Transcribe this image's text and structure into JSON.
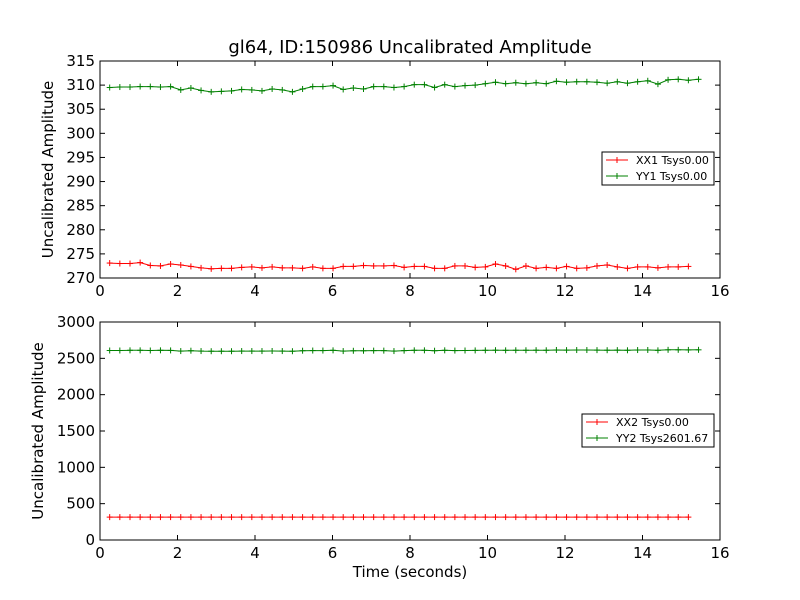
{
  "chart_data": {
    "type": "line",
    "title": "gl64, ID:150986 Uncalibrated Amplitude",
    "xlabel": "Time (seconds)",
    "panels": [
      {
        "id": "top",
        "ylabel": "Uncalibrated Amplitude",
        "xlim": [
          0,
          16
        ],
        "ylim": [
          270,
          315
        ],
        "xticks": [
          "0",
          "2",
          "4",
          "6",
          "8",
          "10",
          "12",
          "14",
          "16"
        ],
        "yticks": [
          "270",
          "275",
          "280",
          "285",
          "290",
          "295",
          "300",
          "305",
          "310",
          "315"
        ],
        "legend_position": "center-right",
        "series": [
          {
            "name": "XX1 Tsys0.00",
            "color": "#ff0000",
            "values": [
              273.1,
              273.0,
              273.0,
              273.2,
              272.6,
              272.5,
              272.9,
              272.7,
              272.4,
              272.1,
              271.9,
              272.0,
              272.0,
              272.2,
              272.3,
              272.1,
              272.3,
              272.1,
              272.1,
              272.0,
              272.3,
              272.0,
              272.0,
              272.4,
              272.4,
              272.6,
              272.5,
              272.5,
              272.6,
              272.2,
              272.4,
              272.4,
              272.0,
              272.0,
              272.5,
              272.5,
              272.2,
              272.3,
              272.9,
              272.5,
              271.8,
              272.5,
              272.0,
              272.2,
              272.0,
              272.4,
              272.0,
              272.1,
              272.5,
              272.7,
              272.3,
              272.0,
              272.3,
              272.3,
              272.1,
              272.3,
              272.3,
              272.4
            ]
          },
          {
            "name": "YY1 Tsys0.00",
            "color": "#008000",
            "values": [
              309.5,
              309.6,
              309.6,
              309.7,
              309.7,
              309.6,
              309.7,
              309.0,
              309.4,
              308.9,
              308.6,
              308.7,
              308.8,
              309.1,
              309.0,
              308.8,
              309.2,
              309.0,
              308.6,
              309.2,
              309.7,
              309.7,
              309.9,
              309.1,
              309.4,
              309.2,
              309.7,
              309.7,
              309.5,
              309.7,
              310.1,
              310.1,
              309.5,
              310.1,
              309.7,
              309.9,
              310.0,
              310.3,
              310.6,
              310.3,
              310.5,
              310.3,
              310.5,
              310.3,
              310.8,
              310.6,
              310.7,
              310.7,
              310.6,
              310.4,
              310.7,
              310.4,
              310.7,
              310.9,
              310.2,
              311.1,
              311.2,
              311.0,
              311.2
            ]
          }
        ]
      },
      {
        "id": "bottom",
        "ylabel": "Uncalibrated Amplitude",
        "xlim": [
          0,
          16
        ],
        "ylim": [
          0,
          3000
        ],
        "xticks": [
          "0",
          "2",
          "4",
          "6",
          "8",
          "10",
          "12",
          "14",
          "16"
        ],
        "yticks": [
          "0",
          "500",
          "1000",
          "1500",
          "2000",
          "2500",
          "3000"
        ],
        "legend_position": "center-right",
        "series": [
          {
            "name": "XX2 Tsys0.00",
            "color": "#ff0000",
            "values": [
              315,
              315,
              315,
              315,
              315,
              315,
              315,
              315,
              315,
              315,
              315,
              315,
              315,
              315,
              315,
              315,
              315,
              315,
              315,
              315,
              315,
              315,
              315,
              315,
              315,
              315,
              315,
              315,
              315,
              315,
              315,
              315,
              315,
              315,
              315,
              315,
              315,
              315,
              315,
              315,
              315,
              315,
              315,
              315,
              315,
              315,
              315,
              315,
              315,
              315,
              315,
              315,
              315,
              315,
              315,
              315,
              315,
              315
            ]
          },
          {
            "name": "YY2 Tsys2601.67",
            "color": "#008000",
            "values": [
              2608,
              2608,
              2610,
              2610,
              2608,
              2610,
              2609,
              2600,
              2605,
              2600,
              2598,
              2598,
              2598,
              2600,
              2600,
              2600,
              2601,
              2600,
              2598,
              2605,
              2607,
              2607,
              2610,
              2600,
              2604,
              2604,
              2606,
              2606,
              2600,
              2606,
              2610,
              2610,
              2605,
              2610,
              2607,
              2608,
              2609,
              2610,
              2612,
              2610,
              2611,
              2611,
              2612,
              2611,
              2615,
              2613,
              2614,
              2614,
              2613,
              2612,
              2613,
              2611,
              2614,
              2615,
              2610,
              2617,
              2617,
              2616,
              2617
            ]
          }
        ]
      }
    ],
    "x_start": 0.25,
    "x_step": 0.262
  }
}
